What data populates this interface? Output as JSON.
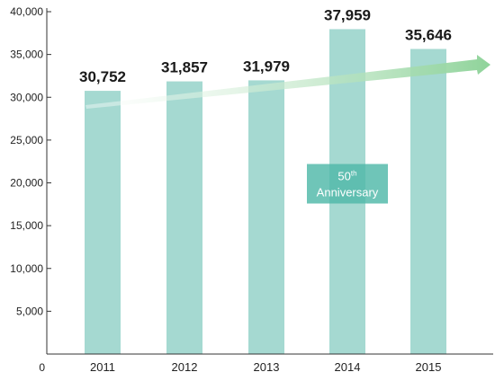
{
  "chart_data": {
    "type": "bar",
    "categories": [
      "2011",
      "2012",
      "2013",
      "2014",
      "2015"
    ],
    "values": [
      30752,
      31857,
      31979,
      37959,
      35646
    ],
    "data_labels": [
      "30,752",
      "31,857",
      "31,979",
      "37,959",
      "35,646"
    ],
    "yticks": [
      0,
      5000,
      10000,
      15000,
      20000,
      25000,
      30000,
      35000,
      40000
    ],
    "ytick_labels": [
      "0",
      "5,000",
      "10,000",
      "15,000",
      "20,000",
      "25,000",
      "30,000",
      "35,000",
      "40,000"
    ],
    "ylim": [
      0,
      40000
    ],
    "grid": false,
    "bar_color": "#a5d9d1",
    "trend_color": "#8fd39a",
    "annotation": {
      "category": "2014",
      "value": 20000,
      "main": "50",
      "superscript": "th",
      "line2": "Anniversary",
      "color": "#4fb8a8"
    }
  }
}
